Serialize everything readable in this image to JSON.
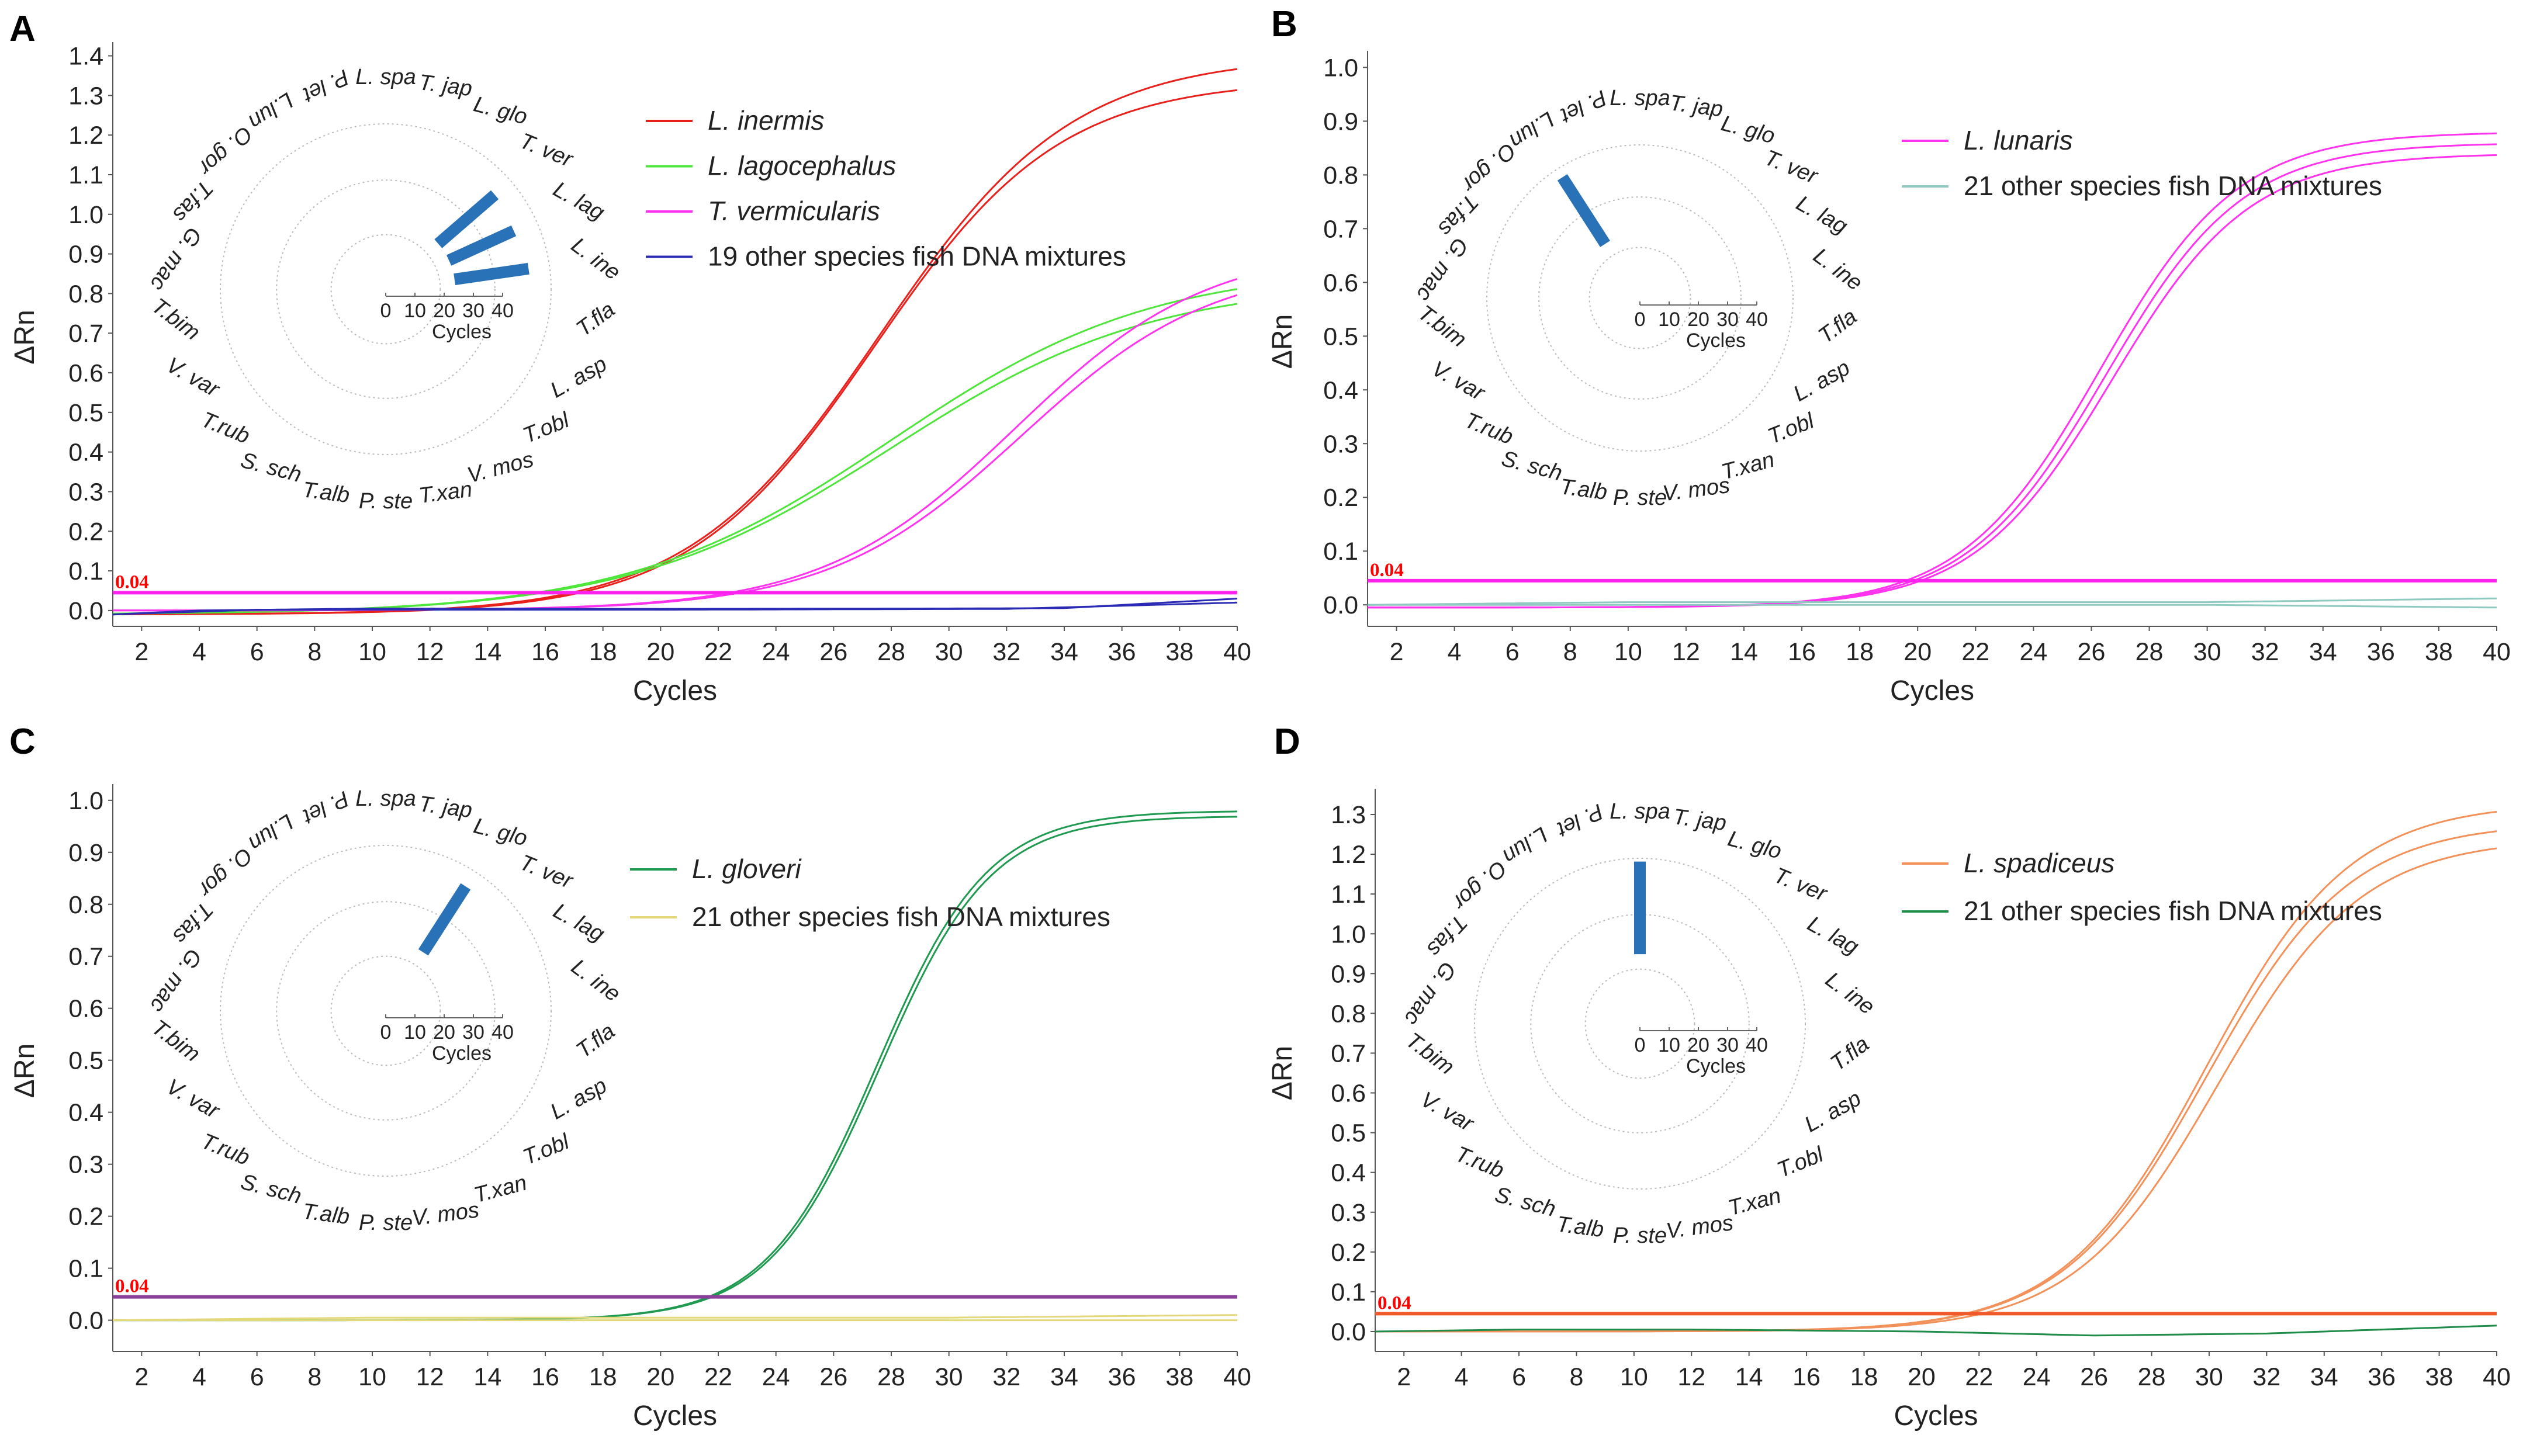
{
  "colors": {
    "red": "#e8211d",
    "green": "#4ee63a",
    "magenta": "#ff33ee",
    "navy": "#2b2bb5",
    "teal": "#8fc9c0",
    "darkgreen": "#1f9a50",
    "yellow": "#e3d97a",
    "orange": "#f2915a",
    "dkgreen2": "#1f8c4a",
    "bar": "#2a72b8",
    "thr_magenta": "#ff22ee",
    "thr_purple": "#8a3f9a",
    "thr_orange": "#f05a2a",
    "thr_label": "#ff0000"
  },
  "chart_data": [
    {
      "panel": "A",
      "type": "line",
      "title": "",
      "xlabel": "Cycles",
      "ylabel": "ΔRn",
      "xlim": [
        1,
        40
      ],
      "ylim": [
        -0.04,
        1.42
      ],
      "xticks": [
        "2",
        "4",
        "6",
        "8",
        "10",
        "12",
        "14",
        "16",
        "18",
        "20",
        "22",
        "24",
        "26",
        "28",
        "30",
        "32",
        "34",
        "36",
        "38",
        "40"
      ],
      "yticks": [
        "0.0",
        "0.1",
        "0.2",
        "0.3",
        "0.4",
        "0.5",
        "0.6",
        "0.7",
        "0.8",
        "0.9",
        "1.0",
        "1.1",
        "1.2",
        "1.3",
        "1.4"
      ],
      "threshold": {
        "label": "0.04",
        "value": 0.045,
        "color": "thr_magenta"
      },
      "series": [
        {
          "name": "L. inermis",
          "italic": true,
          "color": "red",
          "legend": true,
          "baseline": -0.01,
          "plateau": 1.4,
          "mid": 27.6,
          "slope": 0.3
        },
        {
          "name": "L. inermis",
          "italic": true,
          "color": "red",
          "legend": false,
          "baseline": -0.01,
          "plateau": 1.34,
          "mid": 27.4,
          "slope": 0.31
        },
        {
          "name": "L. lagocephalus",
          "italic": true,
          "color": "green",
          "legend": true,
          "baseline": -0.01,
          "plateau": 0.87,
          "mid": 28.0,
          "slope": 0.22
        },
        {
          "name": "L. lagocephalus",
          "italic": true,
          "color": "green",
          "legend": false,
          "baseline": -0.01,
          "plateau": 0.83,
          "mid": 28.0,
          "slope": 0.22
        },
        {
          "name": "T. vermicularis",
          "italic": true,
          "color": "magenta",
          "legend": true,
          "baseline": 0.0,
          "plateau": 0.92,
          "mid": 32.3,
          "slope": 0.3
        },
        {
          "name": "T. vermicularis",
          "italic": true,
          "color": "magenta",
          "legend": false,
          "baseline": 0.0,
          "plateau": 0.88,
          "mid": 32.5,
          "slope": 0.3
        },
        {
          "name": "19 other species fish DNA mixtures",
          "italic": false,
          "color": "navy",
          "legend": true,
          "flat": [
            [
              1,
              -0.01
            ],
            [
              4,
              0.0
            ],
            [
              10,
              0.005
            ],
            [
              20,
              0.004
            ],
            [
              30,
              0.005
            ],
            [
              34,
              0.006
            ],
            [
              40,
              0.03
            ]
          ]
        },
        {
          "name": "19 other species fish DNA mixtures",
          "italic": false,
          "color": "navy",
          "legend": false,
          "flat": [
            [
              1,
              -0.01
            ],
            [
              6,
              0.002
            ],
            [
              20,
              0.002
            ],
            [
              32,
              0.004
            ],
            [
              40,
              0.02
            ]
          ]
        }
      ],
      "polar": {
        "species": [
          "L. spa",
          "T. jap",
          "L. glo",
          "T. ver",
          "L. lag",
          "L. ine",
          "T.fla",
          "L. asp",
          "T.obl",
          "V. mos",
          "T.xan",
          "P. ste",
          "T.alb",
          "S. sch",
          "T.rub",
          "V. var",
          "T.bim",
          "G. mac",
          "T.fas",
          "O. gor",
          "L.lun",
          "P. let"
        ],
        "values": [
          0,
          0,
          0,
          21,
          20,
          21,
          0,
          0,
          0,
          0,
          0,
          0,
          0,
          0,
          0,
          0,
          0,
          0,
          0,
          0,
          0,
          0
        ],
        "scale_ticks": [
          "0",
          "10",
          "20",
          "30",
          "40"
        ],
        "scale_label": "Cycles",
        "rmax": 40
      }
    },
    {
      "panel": "B",
      "type": "line",
      "title": "",
      "xlabel": "Cycles",
      "ylabel": "ΔRn",
      "xlim": [
        1,
        40
      ],
      "ylim": [
        -0.04,
        1.02
      ],
      "xticks": [
        "2",
        "4",
        "6",
        "8",
        "10",
        "12",
        "14",
        "16",
        "18",
        "20",
        "22",
        "24",
        "26",
        "28",
        "30",
        "32",
        "34",
        "36",
        "38",
        "40"
      ],
      "yticks": [
        "0.0",
        "0.1",
        "0.2",
        "0.3",
        "0.4",
        "0.5",
        "0.6",
        "0.7",
        "0.8",
        "0.9",
        "1.0"
      ],
      "threshold": {
        "label": "0.04",
        "value": 0.045,
        "color": "thr_magenta"
      },
      "series": [
        {
          "name": "L. lunaris",
          "italic": true,
          "color": "magenta",
          "legend": true,
          "baseline": -0.005,
          "plateau": 0.88,
          "mid": 26.3,
          "slope": 0.42
        },
        {
          "name": "L. lunaris",
          "italic": true,
          "color": "magenta",
          "legend": false,
          "baseline": -0.005,
          "plateau": 0.86,
          "mid": 26.5,
          "slope": 0.42
        },
        {
          "name": "L. lunaris",
          "italic": true,
          "color": "magenta",
          "legend": false,
          "baseline": -0.005,
          "plateau": 0.84,
          "mid": 26.7,
          "slope": 0.42
        },
        {
          "name": "21 other species fish DNA mixtures",
          "italic": false,
          "color": "teal",
          "legend": true,
          "flat": [
            [
              1,
              0.0
            ],
            [
              10,
              0.005
            ],
            [
              20,
              0.005
            ],
            [
              30,
              0.005
            ],
            [
              40,
              0.012
            ]
          ]
        },
        {
          "name": "21 other species fish DNA mixtures",
          "italic": false,
          "color": "teal",
          "legend": false,
          "flat": [
            [
              1,
              0.0
            ],
            [
              10,
              0.0
            ],
            [
              30,
              0.0
            ],
            [
              40,
              -0.005
            ]
          ]
        }
      ],
      "polar": {
        "species": [
          "L. spa",
          "T. jap",
          "L. glo",
          "T. ver",
          "L. lag",
          "L. ine",
          "T.fla",
          "L. asp",
          "T.obl",
          "T.xan",
          "V. mos",
          "P. ste",
          "T.alb",
          "S. sch",
          "T.rub",
          "V. var",
          "T.bim",
          "G. mac",
          "T.fas",
          "O. gor",
          "L.lun",
          "P. let"
        ],
        "values": [
          0,
          0,
          0,
          0,
          0,
          0,
          0,
          0,
          0,
          0,
          0,
          0,
          0,
          0,
          0,
          0,
          0,
          0,
          0,
          0,
          24,
          0
        ],
        "scale_ticks": [
          "0",
          "10",
          "20",
          "30",
          "40"
        ],
        "scale_label": "Cycles",
        "rmax": 40
      }
    },
    {
      "panel": "C",
      "type": "line",
      "title": "",
      "xlabel": "Cycles",
      "ylabel": "ΔRn",
      "xlim": [
        1,
        40
      ],
      "ylim": [
        -0.06,
        1.02
      ],
      "xticks": [
        "2",
        "4",
        "6",
        "8",
        "10",
        "12",
        "14",
        "16",
        "18",
        "20",
        "22",
        "24",
        "26",
        "28",
        "30",
        "32",
        "34",
        "36",
        "38",
        "40"
      ],
      "yticks": [
        "0.0",
        "0.1",
        "0.2",
        "0.3",
        "0.4",
        "0.5",
        "0.6",
        "0.7",
        "0.8",
        "0.9",
        "1.0"
      ],
      "threshold": {
        "label": "0.04",
        "value": 0.045,
        "color": "thr_purple"
      },
      "series": [
        {
          "name": "L. gloveri",
          "italic": true,
          "color": "darkgreen",
          "legend": true,
          "baseline": 0.0,
          "plateau": 0.98,
          "mid": 27.5,
          "slope": 0.52
        },
        {
          "name": "L. gloveri",
          "italic": true,
          "color": "darkgreen",
          "legend": false,
          "baseline": 0.0,
          "plateau": 0.97,
          "mid": 27.6,
          "slope": 0.52
        },
        {
          "name": "21 other species fish DNA mixtures",
          "italic": false,
          "color": "yellow",
          "legend": true,
          "flat": [
            [
              1,
              0.0
            ],
            [
              10,
              0.005
            ],
            [
              20,
              0.005
            ],
            [
              30,
              0.005
            ],
            [
              40,
              0.01
            ]
          ]
        },
        {
          "name": "21 other species fish DNA mixtures",
          "italic": false,
          "color": "yellow",
          "legend": false,
          "flat": [
            [
              1,
              0.0
            ],
            [
              10,
              0.0
            ],
            [
              30,
              0.0
            ],
            [
              40,
              0.0
            ]
          ]
        }
      ],
      "polar": {
        "species": [
          "L. spa",
          "T. jap",
          "L. glo",
          "T. ver",
          "L. lag",
          "L. ine",
          "T.fla",
          "L. asp",
          "T.obl",
          "T.xan",
          "V. mos",
          "P. ste",
          "T.alb",
          "S. sch",
          "T.rub",
          "V. var",
          "T.bim",
          "G. mac",
          "T.fas",
          "O. gor",
          "L.lun",
          "P. let"
        ],
        "values": [
          0,
          0,
          22,
          0,
          0,
          0,
          0,
          0,
          0,
          0,
          0,
          0,
          0,
          0,
          0,
          0,
          0,
          0,
          0,
          0,
          0,
          0
        ],
        "scale_ticks": [
          "0",
          "10",
          "20",
          "30",
          "40"
        ],
        "scale_label": "Cycles",
        "rmax": 40
      }
    },
    {
      "panel": "D",
      "type": "line",
      "title": "",
      "xlabel": "Cycles",
      "ylabel": "ΔRn",
      "xlim": [
        1,
        40
      ],
      "ylim": [
        -0.05,
        1.35
      ],
      "xticks": [
        "2",
        "4",
        "6",
        "8",
        "10",
        "12",
        "14",
        "16",
        "18",
        "20",
        "22",
        "24",
        "26",
        "28",
        "30",
        "32",
        "34",
        "36",
        "38",
        "40"
      ],
      "yticks": [
        "0.0",
        "0.1",
        "0.2",
        "0.3",
        "0.4",
        "0.5",
        "0.6",
        "0.7",
        "0.8",
        "0.9",
        "1.0",
        "1.1",
        "1.2",
        "1.3"
      ],
      "threshold": {
        "label": "0.04",
        "value": 0.045,
        "color": "thr_orange"
      },
      "series": [
        {
          "name": "L. spadiceus",
          "italic": true,
          "color": "orange",
          "legend": true,
          "baseline": 0.0,
          "plateau": 1.33,
          "mid": 29.9,
          "slope": 0.4
        },
        {
          "name": "L. spadiceus",
          "italic": true,
          "color": "orange",
          "legend": false,
          "baseline": 0.0,
          "plateau": 1.28,
          "mid": 29.9,
          "slope": 0.4
        },
        {
          "name": "L. spadiceus",
          "italic": true,
          "color": "orange",
          "legend": false,
          "baseline": 0.0,
          "plateau": 1.24,
          "mid": 30.3,
          "slope": 0.4
        },
        {
          "name": "21 other species fish DNA mixtures",
          "italic": false,
          "color": "dkgreen2",
          "legend": true,
          "flat": [
            [
              1,
              0.0
            ],
            [
              6,
              0.005
            ],
            [
              12,
              0.005
            ],
            [
              20,
              0.0
            ],
            [
              26,
              -0.01
            ],
            [
              32,
              -0.005
            ],
            [
              40,
              0.015
            ]
          ]
        }
      ],
      "polar": {
        "species": [
          "L. spa",
          "T. jap",
          "L. glo",
          "T. ver",
          "L. lag",
          "L. ine",
          "T.fla",
          "L. asp",
          "T.obl",
          "T.xan",
          "V. mos",
          "P. ste",
          "T.alb",
          "S. sch",
          "T.rub",
          "V. var",
          "T.bim",
          "G. mac",
          "T.fas",
          "O. gor",
          "L.lun",
          "P. let"
        ],
        "values": [
          26,
          0,
          0,
          0,
          0,
          0,
          0,
          0,
          0,
          0,
          0,
          0,
          0,
          0,
          0,
          0,
          0,
          0,
          0,
          0,
          0,
          0
        ],
        "scale_ticks": [
          "0",
          "10",
          "20",
          "30",
          "40"
        ],
        "scale_label": "Cycles",
        "rmax": 40
      }
    }
  ]
}
